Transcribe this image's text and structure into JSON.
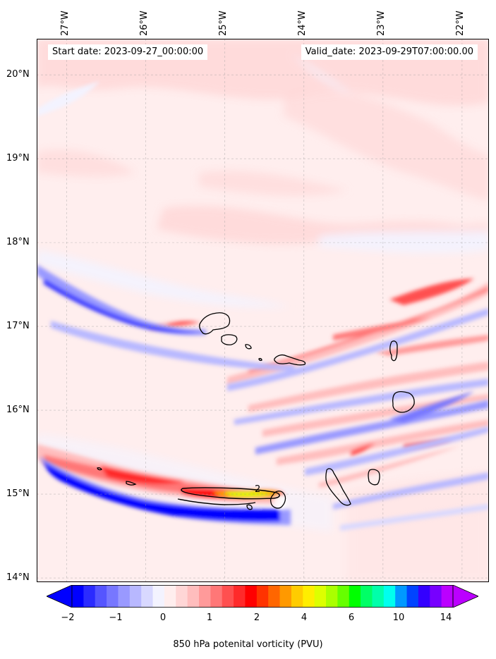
{
  "map": {
    "start_label": "Start date: 2023-09-27_00:00:00",
    "valid_label": "Valid_date: 2023-09-29T07:00:00.00",
    "lon_ticks": [
      "27°W",
      "26°W",
      "25°W",
      "24°W",
      "23°W",
      "22°W"
    ],
    "lat_ticks": [
      "20°N",
      "19°N",
      "18°N",
      "17°N",
      "16°N",
      "15°N",
      "14°N"
    ],
    "lon_values": [
      -27,
      -26,
      -25,
      -24,
      -23,
      -22
    ],
    "lat_values": [
      20,
      19,
      18,
      17,
      16,
      15,
      14
    ],
    "extent": {
      "lon_min": -27.38,
      "lon_max": -21.66,
      "lat_min": 13.95,
      "lat_max": 20.43
    },
    "contour_label": "2",
    "gridlines": true
  },
  "colorbar": {
    "title": "850 hPa potenital vorticity (PVU)",
    "tick_labels": [
      "−2",
      "−1",
      "0",
      "1",
      "2",
      "4",
      "6",
      "10",
      "14"
    ],
    "colors": [
      "#0000ff",
      "#2b2bff",
      "#5555ff",
      "#7777ff",
      "#9999ff",
      "#b8b8ff",
      "#d8d8ff",
      "#f3f3ff",
      "#ffeeee",
      "#ffd6d6",
      "#ffbdbd",
      "#ff9a9a",
      "#ff7777",
      "#ff5050",
      "#ff2a2a",
      "#ff0000",
      "#ff3300",
      "#ff6600",
      "#ff9900",
      "#ffcc00",
      "#ffee00",
      "#ddff00",
      "#aaff00",
      "#66ff00",
      "#00ff00",
      "#00ff66",
      "#00ffaa",
      "#00ffee",
      "#0099ff",
      "#0044ff",
      "#3300ff",
      "#7700ff",
      "#bb00ff"
    ],
    "extend_low_color": "#0000ff",
    "extend_high_color": "#bb00ff"
  }
}
